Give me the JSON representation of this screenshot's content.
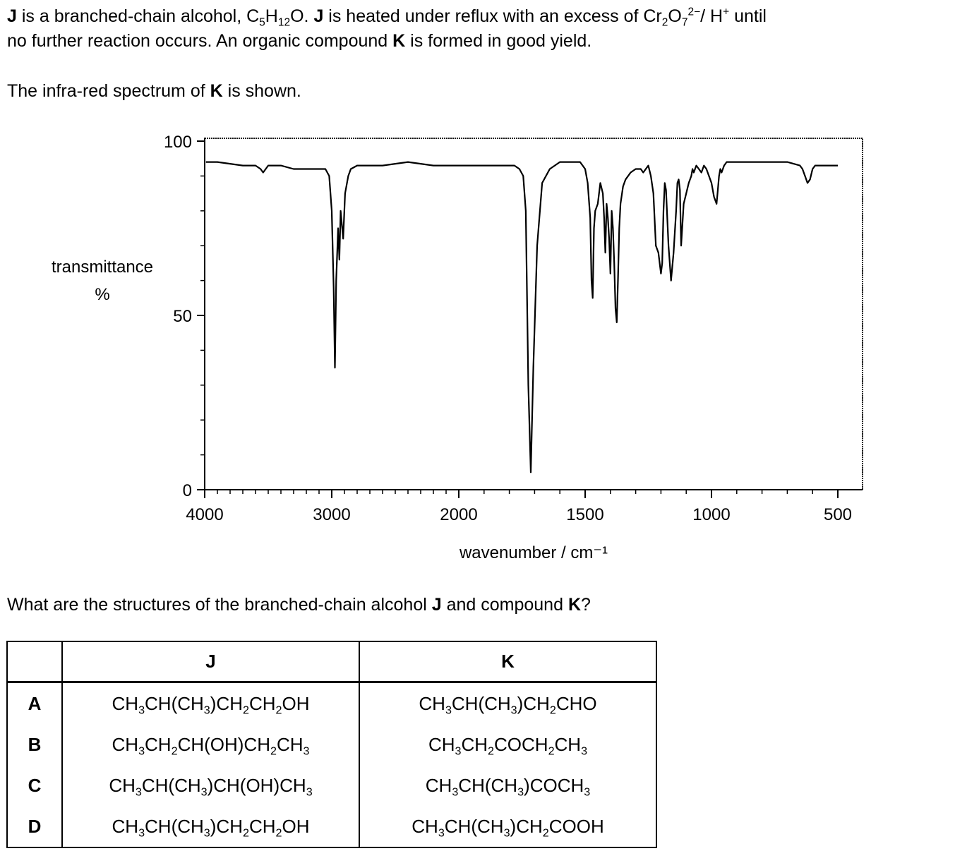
{
  "intro": {
    "J1": "J",
    "t1": " is a branched-chain alcohol, C",
    "s5": "5",
    "tH": "H",
    "s12": "12",
    "tO": "O. ",
    "J2": "J",
    "t2": " is heated under reflux with an excess of Cr",
    "s2": "2",
    "tO2": "O",
    "s7": "7",
    "sup2": "2−",
    "tH2": "/ H",
    "supplus": "+",
    "t3": " until",
    "line2a": "no further reaction occurs. An organic compound ",
    "K1": "K",
    "line2b": " is formed in good yield."
  },
  "spectrum_intro": {
    "a": "The infra-red spectrum of ",
    "K": "K",
    "b": " is shown."
  },
  "chart_data": {
    "type": "line",
    "xlabel": "wavenumber / cm⁻¹",
    "ylabel_line1": "transmittance",
    "ylabel_line2": "%",
    "xlim": [
      4000,
      450
    ],
    "ylim": [
      0,
      100
    ],
    "x_ticks": [
      "4000",
      "3000",
      "2000",
      "1500",
      "1000",
      "500"
    ],
    "y_ticks": [
      "100",
      "50",
      "0"
    ],
    "series": [
      {
        "x": [
          3990,
          3900,
          3700,
          3600,
          3560,
          3540,
          3500,
          3400,
          3300,
          3200,
          3050,
          3020,
          3000,
          2985,
          2975,
          2965,
          2950,
          2940,
          2930,
          2920,
          2910,
          2895,
          2880,
          2870,
          2850,
          2800,
          2700,
          2600,
          2400,
          2200,
          2000,
          1900,
          1850,
          1800,
          1780,
          1760,
          1745,
          1735,
          1725,
          1715,
          1705,
          1690,
          1670,
          1640,
          1620,
          1600,
          1580,
          1520,
          1500,
          1490,
          1480,
          1475,
          1470,
          1465,
          1460,
          1455,
          1450,
          1440,
          1430,
          1425,
          1420,
          1415,
          1410,
          1405,
          1400,
          1395,
          1390,
          1385,
          1380,
          1375,
          1370,
          1365,
          1360,
          1350,
          1340,
          1330,
          1320,
          1300,
          1280,
          1270,
          1260,
          1250,
          1240,
          1230,
          1220,
          1210,
          1200,
          1195,
          1190,
          1185,
          1180,
          1170,
          1160,
          1150,
          1140,
          1135,
          1130,
          1125,
          1120,
          1110,
          1100,
          1090,
          1080,
          1075,
          1070,
          1065,
          1060,
          1050,
          1040,
          1030,
          1020,
          1010,
          1000,
          990,
          980,
          975,
          970,
          965,
          960,
          950,
          940,
          930,
          920,
          900,
          850,
          800,
          750,
          700,
          650,
          640,
          630,
          620,
          610,
          600,
          590,
          580,
          570,
          560,
          550,
          540,
          520,
          500
        ],
        "y": [
          94,
          94,
          93,
          93,
          92,
          91,
          93,
          93,
          92,
          92,
          92,
          90,
          80,
          58,
          35,
          60,
          75,
          66,
          80,
          76,
          72,
          85,
          88,
          90,
          92,
          93,
          93,
          93,
          94,
          93,
          93,
          93,
          93,
          93,
          93,
          92,
          90,
          80,
          30,
          5,
          35,
          70,
          88,
          92,
          93,
          94,
          94,
          94,
          92,
          88,
          78,
          60,
          55,
          75,
          80,
          81,
          82,
          88,
          85,
          78,
          68,
          82,
          78,
          72,
          62,
          80,
          75,
          65,
          52,
          48,
          60,
          75,
          82,
          87,
          89,
          90,
          91,
          92,
          92,
          91,
          92,
          93,
          90,
          85,
          70,
          68,
          62,
          65,
          80,
          88,
          86,
          70,
          60,
          68,
          80,
          88,
          89,
          86,
          70,
          82,
          85,
          88,
          90,
          92,
          91,
          92,
          93,
          92,
          91,
          93,
          92,
          90,
          88,
          84,
          82,
          86,
          90,
          92,
          91,
          93,
          94,
          94,
          94,
          94,
          94,
          94,
          94,
          94,
          93,
          92,
          90,
          88,
          89,
          92,
          93,
          93,
          93,
          93,
          93,
          93,
          93,
          93
        ]
      }
    ]
  },
  "question": {
    "a": "What are the structures of the branched-chain alcohol ",
    "J": "J",
    "b": " and compound ",
    "K": "K",
    "c": "?"
  },
  "options_table": {
    "header_j": "J",
    "header_k": "K"
  }
}
